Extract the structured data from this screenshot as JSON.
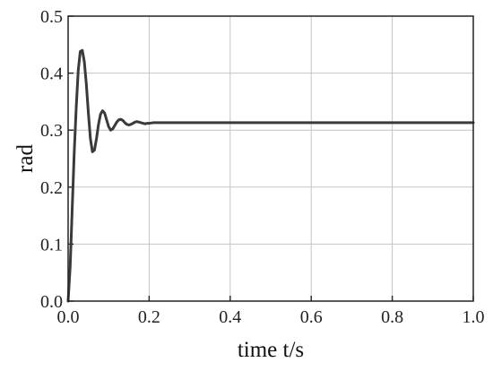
{
  "chart_data": {
    "type": "line",
    "title": "",
    "xlabel": "time t/s",
    "ylabel": "rad",
    "xlim": [
      0.0,
      1.0
    ],
    "ylim": [
      0.0,
      0.5
    ],
    "x_ticks": [
      "0.0",
      "0.2",
      "0.4",
      "0.6",
      "0.8",
      "1.0"
    ],
    "y_ticks": [
      "0.0",
      "0.1",
      "0.2",
      "0.3",
      "0.4",
      "0.5"
    ],
    "grid": true,
    "legend": "none",
    "colors": {
      "line": "#3a3a3a",
      "grid": "#c4c4c4",
      "frame": "#222222"
    },
    "series": [
      {
        "x": [
          0.0,
          0.005,
          0.01,
          0.015,
          0.02,
          0.025,
          0.03,
          0.035,
          0.04,
          0.045,
          0.05,
          0.055,
          0.06,
          0.065,
          0.07,
          0.075,
          0.08,
          0.085,
          0.09,
          0.095,
          0.1,
          0.105,
          0.11,
          0.115,
          0.12,
          0.125,
          0.13,
          0.135,
          0.14,
          0.145,
          0.15,
          0.155,
          0.16,
          0.165,
          0.17,
          0.175,
          0.18,
          0.185,
          0.19,
          0.195,
          0.2,
          0.21,
          0.22,
          0.23,
          0.24,
          0.25,
          0.3,
          0.4,
          0.5,
          0.6,
          0.7,
          0.8,
          0.9,
          1.0
        ],
        "values": [
          0.0,
          0.06,
          0.16,
          0.26,
          0.34,
          0.405,
          0.438,
          0.44,
          0.42,
          0.38,
          0.33,
          0.285,
          0.262,
          0.265,
          0.285,
          0.31,
          0.328,
          0.334,
          0.33,
          0.318,
          0.306,
          0.3,
          0.302,
          0.308,
          0.314,
          0.318,
          0.319,
          0.317,
          0.313,
          0.31,
          0.309,
          0.31,
          0.312,
          0.314,
          0.315,
          0.314,
          0.313,
          0.312,
          0.311,
          0.312,
          0.312,
          0.313,
          0.313,
          0.313,
          0.313,
          0.313,
          0.313,
          0.313,
          0.313,
          0.313,
          0.313,
          0.313,
          0.313,
          0.313
        ]
      }
    ]
  }
}
